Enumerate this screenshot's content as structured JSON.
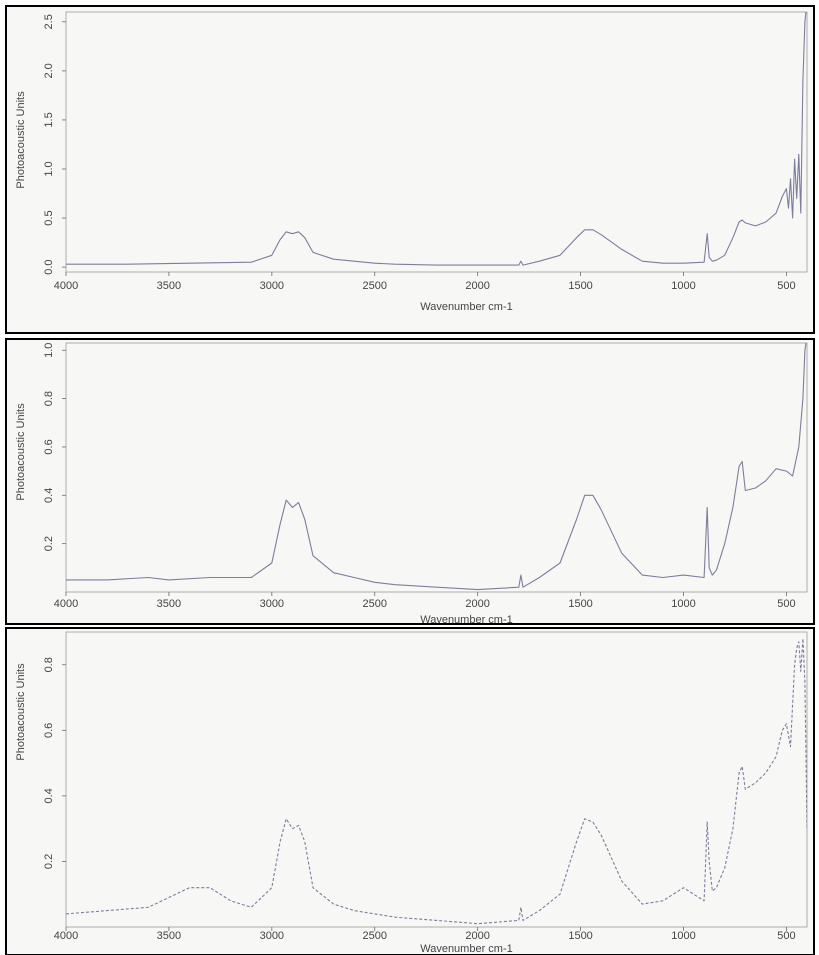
{
  "chart_data": [
    {
      "type": "line",
      "xlabel": "Wavenumber cm-1",
      "ylabel": "Photoacoustic Units",
      "xlim": [
        4000,
        400
      ],
      "ylim": [
        -0.05,
        2.6
      ],
      "xticks": [
        4000,
        3500,
        3000,
        2500,
        2000,
        1500,
        1000,
        500
      ],
      "xtick_labels": [
        "4000",
        "3500",
        "3000",
        "2500",
        "2000",
        "1500",
        "1000",
        "500"
      ],
      "yticks": [
        0.0,
        0.5,
        1.0,
        1.5,
        2.0,
        2.5
      ],
      "ytick_labels": [
        "0.0",
        "0.5",
        "1.0",
        "1.5",
        "2.0",
        "2.5"
      ],
      "line_style": "solid",
      "color": "#7d7d9e",
      "x": [
        4000,
        3700,
        3400,
        3100,
        3000,
        2960,
        2930,
        2900,
        2870,
        2840,
        2800,
        2700,
        2600,
        2500,
        2400,
        2200,
        2000,
        1800,
        1790,
        1780,
        1700,
        1600,
        1520,
        1480,
        1440,
        1400,
        1300,
        1200,
        1100,
        1000,
        900,
        885,
        875,
        860,
        840,
        800,
        760,
        730,
        715,
        700,
        650,
        600,
        550,
        520,
        500,
        490,
        480,
        470,
        460,
        450,
        440,
        430,
        420,
        410,
        400
      ],
      "y": [
        0.03,
        0.03,
        0.04,
        0.05,
        0.12,
        0.28,
        0.36,
        0.34,
        0.36,
        0.3,
        0.15,
        0.08,
        0.06,
        0.04,
        0.03,
        0.02,
        0.02,
        0.02,
        0.06,
        0.02,
        0.06,
        0.12,
        0.3,
        0.38,
        0.38,
        0.33,
        0.18,
        0.06,
        0.04,
        0.04,
        0.05,
        0.34,
        0.1,
        0.06,
        0.07,
        0.12,
        0.3,
        0.46,
        0.48,
        0.45,
        0.42,
        0.46,
        0.55,
        0.72,
        0.8,
        0.6,
        0.9,
        0.5,
        1.1,
        0.7,
        1.15,
        0.55,
        1.9,
        2.5,
        2.7
      ]
    },
    {
      "type": "line",
      "xlabel": "Wavenumber cm-1",
      "ylabel": "Photoacoustic Units",
      "xlim": [
        4000,
        400
      ],
      "ylim": [
        0.0,
        1.03
      ],
      "xticks": [
        4000,
        3500,
        3000,
        2500,
        2000,
        1500,
        1000,
        500
      ],
      "xtick_labels": [
        "4000",
        "3500",
        "3000",
        "2500",
        "2000",
        "1500",
        "1000",
        "500"
      ],
      "yticks": [
        0.2,
        0.4,
        0.6,
        0.8,
        1.0
      ],
      "ytick_labels": [
        "0.2",
        "0.4",
        "0.6",
        "0.8",
        "1.0"
      ],
      "line_style": "solid",
      "color": "#7d7d9e",
      "x": [
        4000,
        3800,
        3600,
        3500,
        3300,
        3100,
        3000,
        2960,
        2930,
        2900,
        2870,
        2840,
        2800,
        2700,
        2600,
        2500,
        2400,
        2200,
        2000,
        1800,
        1790,
        1780,
        1700,
        1600,
        1520,
        1480,
        1440,
        1400,
        1300,
        1200,
        1100,
        1000,
        900,
        885,
        875,
        860,
        840,
        800,
        760,
        730,
        715,
        700,
        650,
        600,
        550,
        500,
        470,
        440,
        420,
        410,
        400
      ],
      "y": [
        0.05,
        0.05,
        0.06,
        0.05,
        0.06,
        0.06,
        0.12,
        0.28,
        0.38,
        0.35,
        0.37,
        0.3,
        0.15,
        0.08,
        0.06,
        0.04,
        0.03,
        0.02,
        0.01,
        0.02,
        0.07,
        0.02,
        0.06,
        0.12,
        0.3,
        0.4,
        0.4,
        0.34,
        0.16,
        0.07,
        0.06,
        0.07,
        0.06,
        0.35,
        0.1,
        0.07,
        0.09,
        0.2,
        0.35,
        0.52,
        0.54,
        0.42,
        0.43,
        0.46,
        0.51,
        0.5,
        0.48,
        0.6,
        0.8,
        1.0,
        1.06
      ]
    },
    {
      "type": "line",
      "xlabel": "Wavenumber cm-1",
      "ylabel": "Photoacoustic Units",
      "xlim": [
        4000,
        400
      ],
      "ylim": [
        0.0,
        0.9
      ],
      "xticks": [
        4000,
        3500,
        3000,
        2500,
        2000,
        1500,
        1000,
        500
      ],
      "xtick_labels": [
        "4000",
        "3500",
        "3000",
        "2500",
        "2000",
        "1500",
        "1000",
        "500"
      ],
      "yticks": [
        0.2,
        0.4,
        0.6,
        0.8
      ],
      "ytick_labels": [
        "0.2",
        "0.4",
        "0.6",
        "0.8"
      ],
      "line_style": "dashed",
      "color": "#7d7d9e",
      "x": [
        4000,
        3800,
        3600,
        3500,
        3400,
        3300,
        3200,
        3100,
        3000,
        2960,
        2930,
        2900,
        2870,
        2840,
        2800,
        2700,
        2600,
        2500,
        2400,
        2200,
        2000,
        1800,
        1790,
        1780,
        1700,
        1600,
        1520,
        1480,
        1440,
        1400,
        1300,
        1200,
        1100,
        1000,
        900,
        885,
        875,
        860,
        840,
        800,
        760,
        730,
        715,
        700,
        650,
        600,
        550,
        520,
        500,
        480,
        460,
        450,
        440,
        430,
        420,
        410,
        400
      ],
      "y": [
        0.04,
        0.05,
        0.06,
        0.09,
        0.12,
        0.12,
        0.08,
        0.06,
        0.12,
        0.26,
        0.33,
        0.3,
        0.31,
        0.26,
        0.12,
        0.07,
        0.05,
        0.04,
        0.03,
        0.02,
        0.01,
        0.02,
        0.06,
        0.02,
        0.05,
        0.1,
        0.26,
        0.33,
        0.32,
        0.28,
        0.14,
        0.07,
        0.08,
        0.12,
        0.08,
        0.32,
        0.2,
        0.11,
        0.12,
        0.18,
        0.3,
        0.47,
        0.49,
        0.42,
        0.44,
        0.47,
        0.52,
        0.6,
        0.62,
        0.55,
        0.8,
        0.85,
        0.87,
        0.78,
        0.88,
        0.75,
        0.3
      ]
    }
  ]
}
